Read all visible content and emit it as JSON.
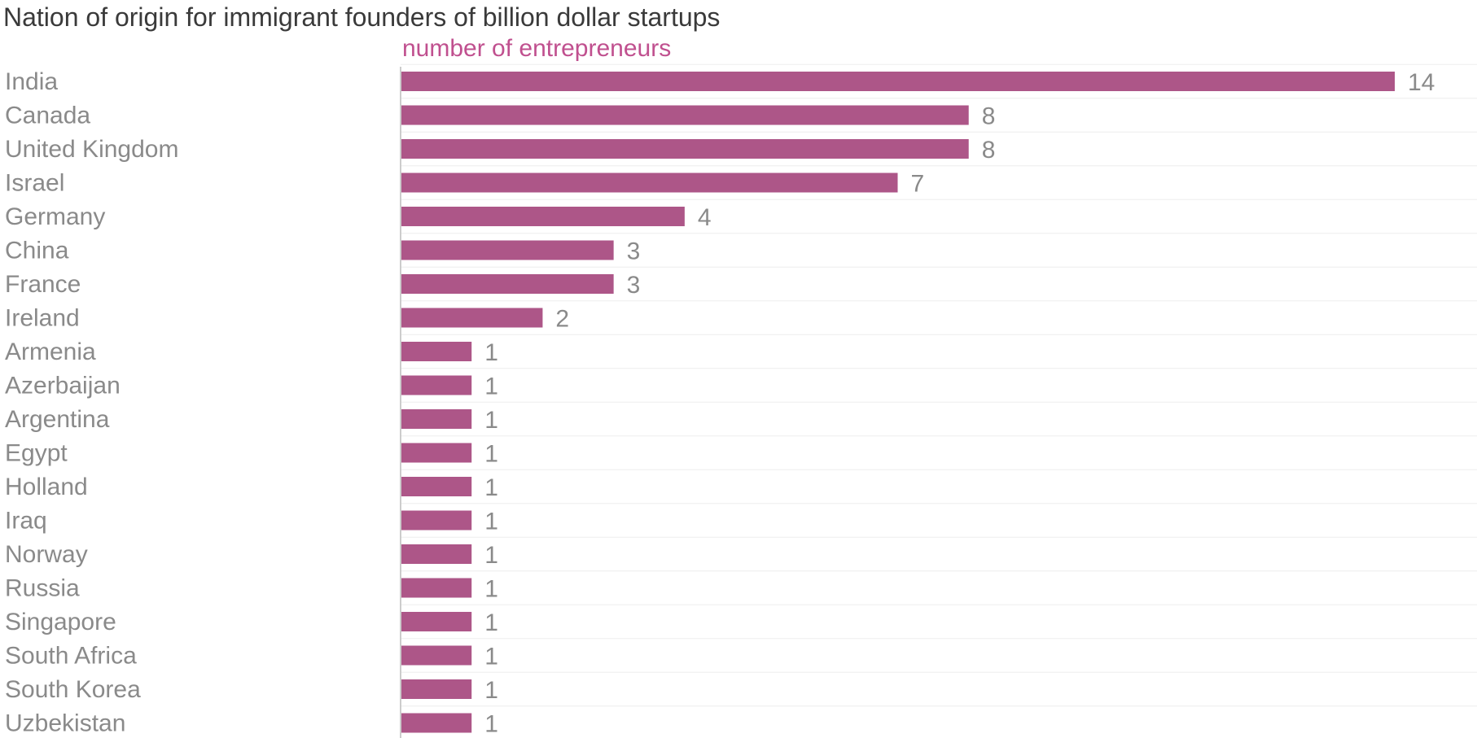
{
  "chart_data": {
    "type": "bar",
    "orientation": "horizontal",
    "title": "Nation of origin for immigrant founders of billion dollar startups",
    "subtitle": "number of entrepreneurs",
    "categories": [
      "India",
      "Canada",
      "United Kingdom",
      "Israel",
      "Germany",
      "China",
      "France",
      "Ireland",
      "Armenia",
      "Azerbaijan",
      "Argentina",
      "Egypt",
      "Holland",
      "Iraq",
      "Norway",
      "Russia",
      "Singapore",
      "South Africa",
      "South Korea",
      "Uzbekistan"
    ],
    "values": [
      14,
      8,
      8,
      7,
      4,
      3,
      3,
      2,
      1,
      1,
      1,
      1,
      1,
      1,
      1,
      1,
      1,
      1,
      1,
      1
    ],
    "xlim": [
      0,
      14
    ],
    "grid": true,
    "colors": {
      "bar": "#ad5688",
      "subtitle": "#c0508f",
      "grid": "#eeeeee",
      "axis": "#cccccc"
    }
  }
}
